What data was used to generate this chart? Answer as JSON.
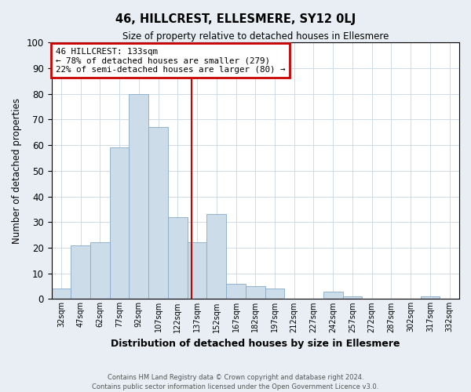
{
  "title": "46, HILLCREST, ELLESMERE, SY12 0LJ",
  "subtitle": "Size of property relative to detached houses in Ellesmere",
  "xlabel": "Distribution of detached houses by size in Ellesmere",
  "ylabel": "Number of detached properties",
  "bin_labels": [
    "32sqm",
    "47sqm",
    "62sqm",
    "77sqm",
    "92sqm",
    "107sqm",
    "122sqm",
    "137sqm",
    "152sqm",
    "167sqm",
    "182sqm",
    "197sqm",
    "212sqm",
    "227sqm",
    "242sqm",
    "257sqm",
    "272sqm",
    "287sqm",
    "302sqm",
    "317sqm",
    "332sqm"
  ],
  "bar_values": [
    4,
    21,
    22,
    59,
    80,
    67,
    32,
    22,
    33,
    6,
    5,
    4,
    0,
    0,
    3,
    1,
    0,
    0,
    0,
    1,
    0
  ],
  "bar_color": "#ccdce8",
  "bar_edgecolor": "#88aac8",
  "annotation_title": "46 HILLCREST: 133sqm",
  "annotation_line1": "← 78% of detached houses are smaller (279)",
  "annotation_line2": "22% of semi-detached houses are larger (80) →",
  "annotation_box_facecolor": "#ffffff",
  "annotation_box_edgecolor": "#cc0000",
  "vline_color": "#cc0000",
  "ylim": [
    0,
    100
  ],
  "yticks": [
    0,
    10,
    20,
    30,
    40,
    50,
    60,
    70,
    80,
    90,
    100
  ],
  "footer_line1": "Contains HM Land Registry data © Crown copyright and database right 2024.",
  "footer_line2": "Contains public sector information licensed under the Open Government Licence v3.0.",
  "bg_color": "#e8eef4",
  "plot_bg_color": "#ffffff",
  "grid_color": "#c8d4e0"
}
